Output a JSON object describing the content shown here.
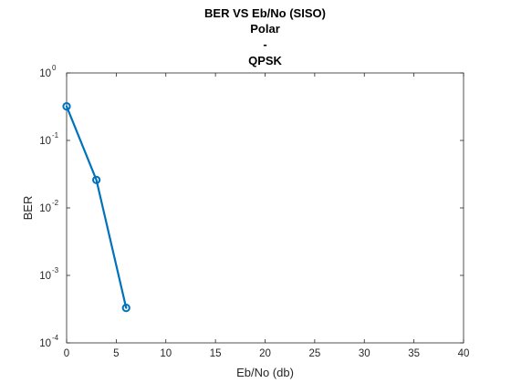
{
  "chart_data": {
    "type": "line",
    "title_lines": [
      "BER VS Eb/No (SISO)",
      "Polar",
      "-",
      "QPSK"
    ],
    "xlabel": "Eb/No (db)",
    "ylabel": "BER",
    "xlim": [
      0,
      40
    ],
    "ylim": [
      0.0001,
      1
    ],
    "yscale": "log",
    "xticks": [
      0,
      5,
      10,
      15,
      20,
      25,
      30,
      35,
      40
    ],
    "yticks": [
      {
        "value": 0.0001,
        "base": "10",
        "exp": "-4"
      },
      {
        "value": 0.001,
        "base": "10",
        "exp": "-3"
      },
      {
        "value": 0.01,
        "base": "10",
        "exp": "-2"
      },
      {
        "value": 0.1,
        "base": "10",
        "exp": "-1"
      },
      {
        "value": 1,
        "base": "10",
        "exp": "0"
      }
    ],
    "grid": false,
    "series": [
      {
        "x": [
          0,
          3,
          6
        ],
        "y": [
          0.32,
          0.026,
          0.00033
        ],
        "color": "#0072BD",
        "marker": "circle"
      }
    ]
  }
}
